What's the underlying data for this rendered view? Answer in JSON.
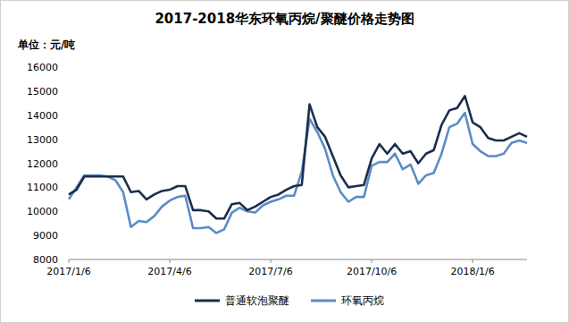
{
  "chart_data": {
    "type": "line",
    "title": "2017-2018华东环氧丙烷/聚醚价格走势图",
    "y_label": "单位：元/吨",
    "categories": [
      "2017/1/6",
      null,
      null,
      null,
      null,
      null,
      null,
      null,
      null,
      null,
      null,
      null,
      null,
      "2017/4/6",
      null,
      null,
      null,
      null,
      null,
      null,
      null,
      null,
      null,
      null,
      null,
      null,
      "2017/7/6",
      null,
      null,
      null,
      null,
      null,
      null,
      null,
      null,
      null,
      null,
      null,
      null,
      "2017/10/6",
      null,
      null,
      null,
      null,
      null,
      null,
      null,
      null,
      null,
      null,
      null,
      null,
      "2018/1/6",
      null,
      null,
      null,
      null,
      null,
      null,
      null
    ],
    "series": [
      {
        "name": "普通软泡聚醚",
        "color": "#1c2c4c",
        "values": [
          10700,
          10900,
          11450,
          11450,
          11450,
          11450,
          11450,
          11450,
          10800,
          10850,
          10500,
          10700,
          10850,
          10900,
          11050,
          11050,
          10050,
          10050,
          10000,
          9700,
          9700,
          10300,
          10350,
          10050,
          10200,
          10400,
          10600,
          10700,
          10900,
          11050,
          11100,
          14450,
          13500,
          13100,
          12300,
          11500,
          11000,
          11050,
          11100,
          12200,
          12800,
          12400,
          12800,
          12400,
          12500,
          12000,
          12400,
          12550,
          13600,
          14200,
          14300,
          14800,
          13700,
          13500,
          13050,
          12950,
          12950,
          13100,
          13250,
          13100
        ]
      },
      {
        "name": "环氧丙烷",
        "color": "#5b8cc8",
        "values": [
          10500,
          11000,
          11500,
          11500,
          11500,
          11450,
          11300,
          10800,
          9350,
          9600,
          9550,
          9800,
          10200,
          10450,
          10600,
          10650,
          9300,
          9300,
          9350,
          9100,
          9250,
          9950,
          10150,
          10000,
          9950,
          10250,
          10400,
          10500,
          10650,
          10650,
          11650,
          13850,
          13300,
          12600,
          11500,
          10800,
          10400,
          10600,
          10600,
          11900,
          12050,
          12050,
          12400,
          11750,
          11950,
          11150,
          11500,
          11600,
          12400,
          13500,
          13650,
          14100,
          12800,
          12500,
          12300,
          12300,
          12400,
          12850,
          12950,
          12850
        ]
      }
    ],
    "ylim": [
      8000,
      16000
    ],
    "yticks": [
      8000,
      9000,
      10000,
      11000,
      12000,
      13000,
      14000,
      15000,
      16000
    ],
    "grid": false,
    "legend": "bottom"
  }
}
